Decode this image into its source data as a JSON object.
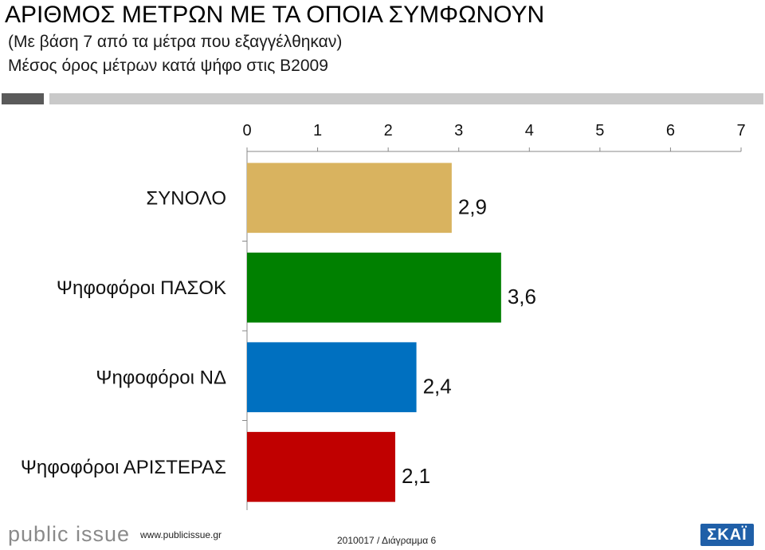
{
  "header": {
    "title": "ΑΡΙΘΜΟΣ ΜΕΤΡΩΝ ΜΕ ΤΑ ΟΠΟΙΑ ΣΥΜΦΩΝΟΥΝ",
    "subtitle1": "(Με βάση 7 από τα μέτρα που εξαγγέλθηκαν)",
    "subtitle2": "Μέσος όρος μέτρων κατά ψήφο στις Β2009"
  },
  "chart_data": {
    "type": "bar",
    "orientation": "horizontal",
    "categories": [
      "ΣΥΝΟΛΟ",
      "Ψηφοφόροι ΠΑΣΟΚ",
      "Ψηφοφόροι ΝΔ",
      "Ψηφοφόροι ΑΡΙΣΤΕΡΑΣ"
    ],
    "values": [
      2.9,
      3.6,
      2.4,
      2.1
    ],
    "value_labels": [
      "2,9",
      "3,6",
      "2,4",
      "2,1"
    ],
    "colors": [
      "#d9b35f",
      "#008000",
      "#0070c0",
      "#c00000"
    ],
    "xlim": [
      0,
      7
    ],
    "xticks": [
      "0",
      "1",
      "2",
      "3",
      "4",
      "5",
      "6",
      "7"
    ],
    "axis_position": "top",
    "grid": false,
    "legend": "none"
  },
  "footer": {
    "logo": "public issue",
    "url": "www.publicissue.gr",
    "code": "2010017 / Διάγραμμα 6",
    "brand": "ΣΚΑΪ"
  }
}
